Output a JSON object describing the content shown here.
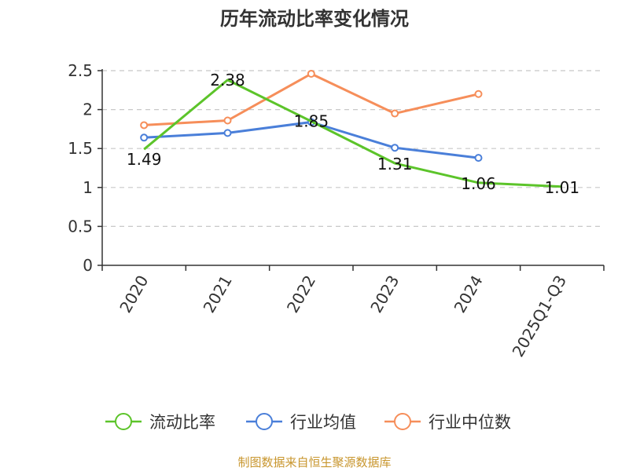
{
  "chart_data": {
    "type": "line",
    "title": "历年流动比率变化情况",
    "categories": [
      "2020",
      "2021",
      "2022",
      "2023",
      "2024",
      "2025Q1-Q3"
    ],
    "ylim": [
      0,
      2.5
    ],
    "yticks": [
      "0",
      "0.5",
      "1",
      "1.5",
      "2",
      "2.5"
    ],
    "grid": true,
    "legend_position": "bottom",
    "series": [
      {
        "name": "流动比率",
        "color": "#5cc42a",
        "values": [
          1.49,
          2.38,
          1.85,
          1.31,
          1.06,
          1.01
        ],
        "labels": [
          "1.49",
          "2.38",
          "1.85",
          "1.31",
          "1.06",
          "1.01"
        ]
      },
      {
        "name": "行业均值",
        "color": "#4a7fd9",
        "values": [
          1.64,
          1.7,
          1.84,
          1.51,
          1.38,
          null
        ]
      },
      {
        "name": "行业中位数",
        "color": "#f68e5a",
        "values": [
          1.8,
          1.86,
          2.46,
          1.95,
          2.2,
          null
        ]
      }
    ],
    "source": "制图数据来自恒生聚源数据库"
  }
}
